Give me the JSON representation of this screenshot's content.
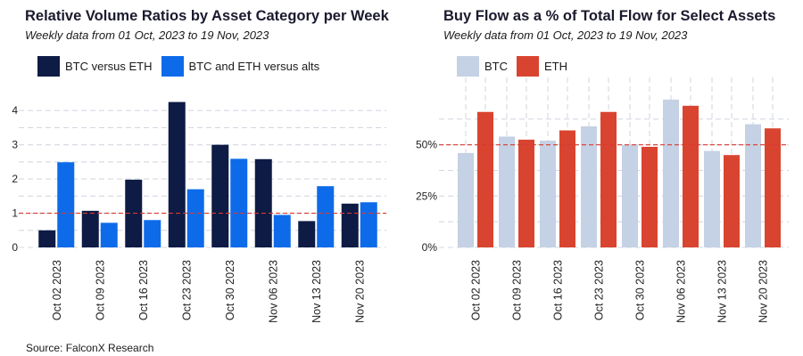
{
  "source": "Source: FalconX Research",
  "charts": {
    "left": {
      "title": "Relative Volume Ratios by Asset Category per Week",
      "subtitle": "Weekly data from 01 Oct, 2023 to 19 Nov, 2023",
      "legend": [
        {
          "label": "BTC versus ETH",
          "color": "#0d1b45"
        },
        {
          "label": "BTC and ETH versus alts",
          "color": "#0d6bea"
        }
      ]
    },
    "right": {
      "title": "Buy Flow as a % of Total Flow for Select Assets",
      "subtitle": "Weekly data from 01 Oct, 2023 to 19 Nov, 2023",
      "legend": [
        {
          "label": "BTC",
          "color": "#c5d1e4"
        },
        {
          "label": "ETH",
          "color": "#d94430"
        }
      ]
    }
  },
  "chart_data": [
    {
      "type": "bar",
      "title": "Relative Volume Ratios by Asset Category per Week",
      "subtitle": "Weekly data from 01 Oct, 2023 to 19 Nov, 2023",
      "categories": [
        "Oct 02 2023",
        "Oct 09 2023",
        "Oct 16 2023",
        "Oct 23 2023",
        "Oct 30 2023",
        "Nov 06 2023",
        "Nov 13 2023",
        "Nov 20 2023"
      ],
      "series": [
        {
          "name": "BTC versus ETH",
          "color": "#0d1b45",
          "values": [
            0.5,
            1.07,
            1.98,
            4.25,
            3.0,
            2.58,
            0.77,
            1.28
          ]
        },
        {
          "name": "BTC and ETH versus alts",
          "color": "#0d6bea",
          "values": [
            2.49,
            0.72,
            0.8,
            1.7,
            2.59,
            0.95,
            1.79,
            1.32
          ]
        }
      ],
      "yticks": [
        "0",
        "1",
        "2",
        "3",
        "4"
      ],
      "ylim": [
        0,
        4.5
      ],
      "reference_line": {
        "value": 1,
        "style": "dashed",
        "color": "#d93a2e"
      },
      "grid": true,
      "legend_position": "top-left"
    },
    {
      "type": "bar",
      "title": "Buy Flow as a % of Total Flow for Select Assets",
      "subtitle": "Weekly data from 01 Oct, 2023 to 19 Nov, 2023",
      "categories": [
        "Oct 02 2023",
        "Oct 09 2023",
        "Oct 16 2023",
        "Oct 23 2023",
        "Oct 30 2023",
        "Nov 06 2023",
        "Nov 13 2023",
        "Nov 20 2023"
      ],
      "series": [
        {
          "name": "BTC",
          "color": "#c5d1e4",
          "values": [
            0.46,
            0.54,
            0.52,
            0.59,
            0.5,
            0.72,
            0.47,
            0.6
          ]
        },
        {
          "name": "ETH",
          "color": "#d94430",
          "values": [
            0.66,
            0.525,
            0.57,
            0.66,
            0.49,
            0.69,
            0.45,
            0.58
          ]
        }
      ],
      "yticks": [
        "0%",
        "25%",
        "50%"
      ],
      "ylim": [
        0,
        0.75
      ],
      "reference_line": {
        "value": 0.5,
        "style": "dashed",
        "color": "#d93a2e"
      },
      "grid": true,
      "legend_position": "top-left"
    }
  ]
}
